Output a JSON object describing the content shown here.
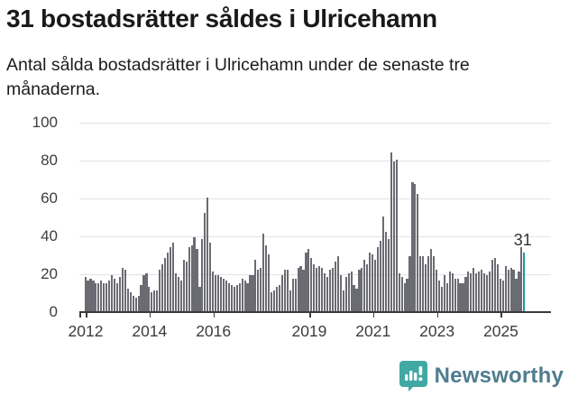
{
  "header": {
    "title": "31 bostadsrätter såldes i Ulricehamn",
    "subtitle": "Antal sålda bostadsrätter i Ulricehamn under de senaste tre månaderna."
  },
  "chart_data": {
    "type": "bar",
    "title": "31 bostadsrätter såldes i Ulricehamn",
    "ylabel": "",
    "xlabel": "",
    "ylim": [
      0,
      100
    ],
    "y_ticks": [
      0,
      20,
      40,
      60,
      80,
      100
    ],
    "x_tick_years": [
      2012,
      2014,
      2016,
      2019,
      2021,
      2023,
      2025
    ],
    "grid": "horizontal",
    "start_month": "2012-01",
    "end_month": "2025-10",
    "values": [
      18,
      16,
      17,
      16,
      15,
      15,
      16,
      15,
      15,
      16,
      19,
      17,
      15,
      18,
      23,
      22,
      12,
      10,
      8,
      7,
      8,
      14,
      19,
      20,
      13,
      10,
      11,
      11,
      22,
      25,
      28,
      31,
      34,
      36,
      20,
      18,
      16,
      27,
      26,
      34,
      35,
      39,
      33,
      13,
      38,
      52,
      60,
      36,
      21,
      19,
      19,
      18,
      17,
      16,
      15,
      14,
      13,
      14,
      15,
      17,
      16,
      15,
      19,
      19,
      27,
      22,
      23,
      41,
      35,
      30,
      10,
      11,
      13,
      14,
      19,
      22,
      22,
      11,
      17,
      17,
      23,
      24,
      22,
      31,
      33,
      28,
      25,
      23,
      24,
      23,
      20,
      18,
      22,
      23,
      26,
      29,
      19,
      11,
      18,
      20,
      21,
      14,
      12,
      22,
      23,
      27,
      25,
      31,
      30,
      27,
      34,
      37,
      50,
      42,
      38,
      84,
      79,
      80,
      20,
      18,
      15,
      17,
      29,
      68,
      67,
      62,
      29,
      29,
      25,
      29,
      33,
      29,
      22,
      16,
      13,
      19,
      15,
      21,
      20,
      17,
      17,
      15,
      15,
      18,
      21,
      20,
      23,
      20,
      21,
      22,
      20,
      19,
      21,
      27,
      28,
      25,
      17,
      16,
      24,
      22,
      23,
      22,
      17,
      21,
      34,
      31
    ],
    "highlight_last_bar": true,
    "last_value_annotation": "31",
    "colors": {
      "bar": "#6b6b73",
      "highlight": "#1a9b9c",
      "grid": "#e3e3e3",
      "axis": "#3b3b3b",
      "tick_label": "#3d3d3d"
    }
  },
  "footer": {
    "brand": "Newsworthy",
    "logo_color": "#41a8a3",
    "text_color": "#4e7d8e"
  }
}
